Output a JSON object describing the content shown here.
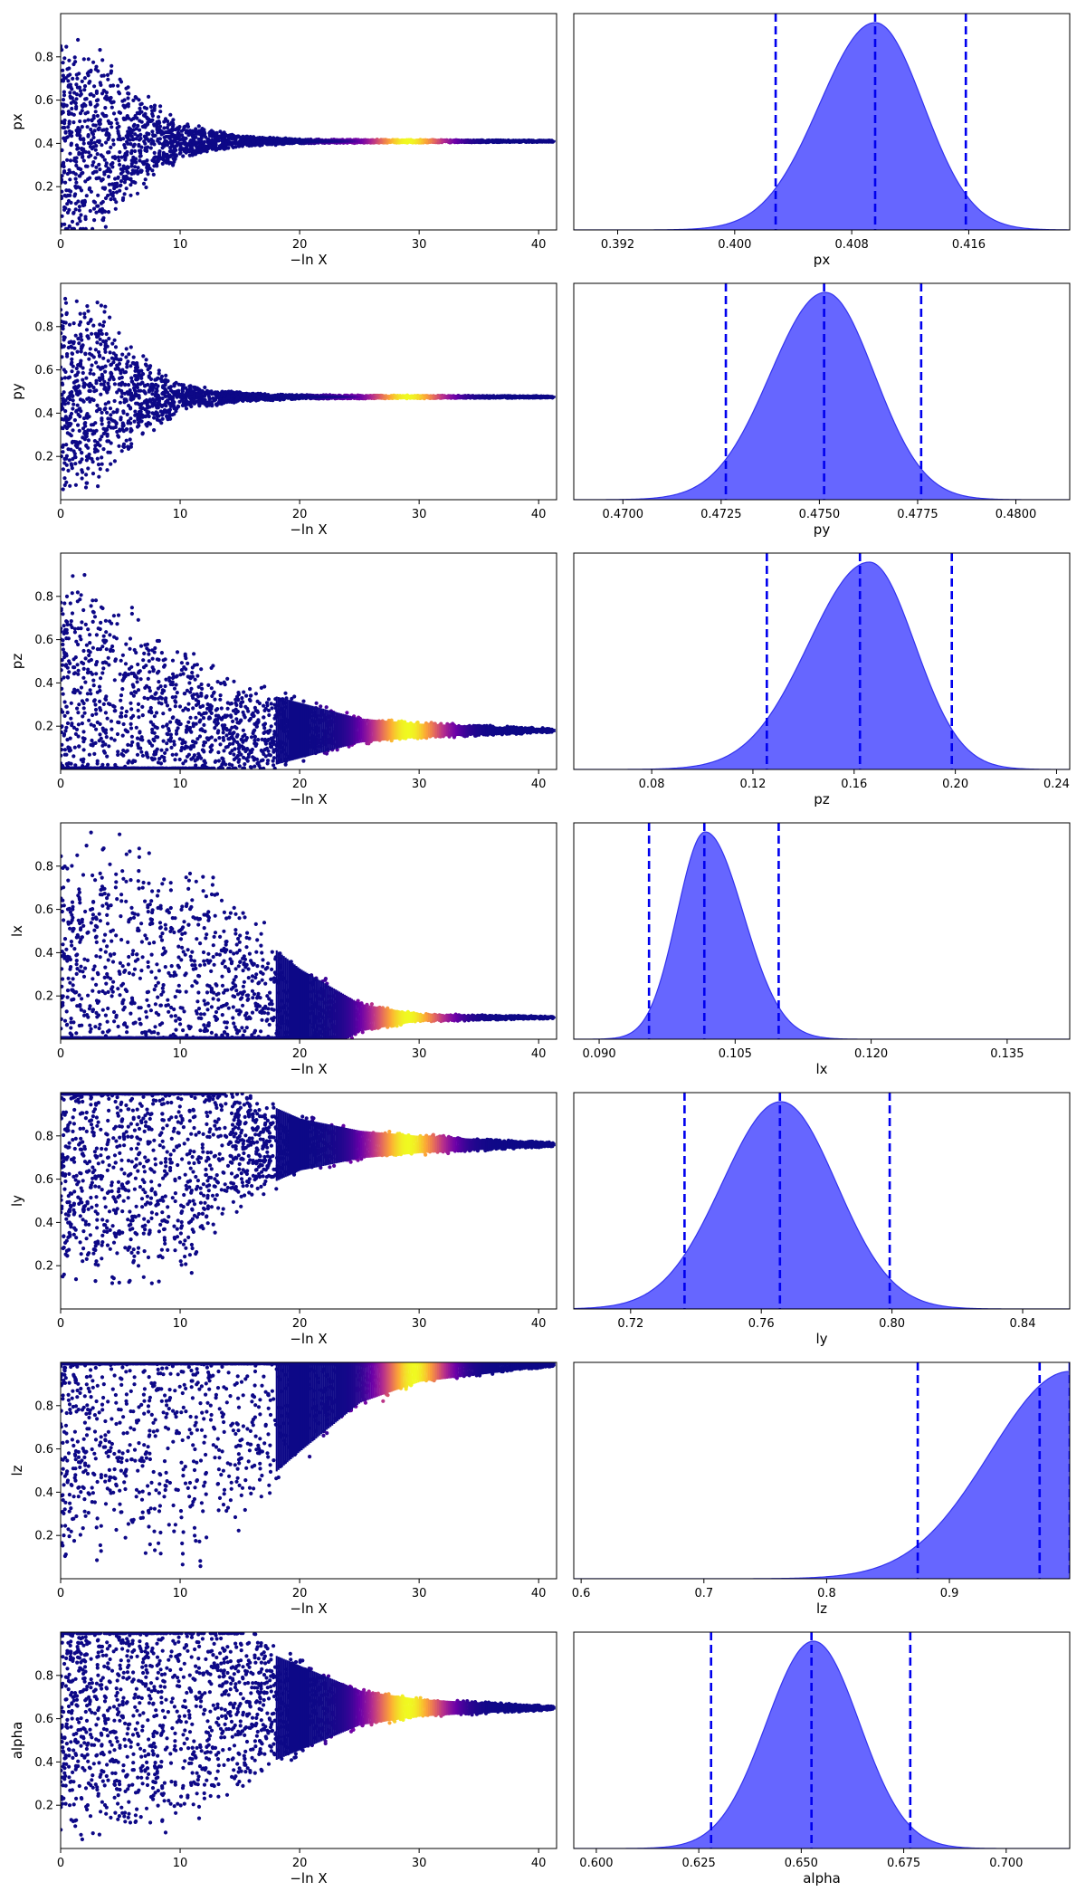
{
  "colors": {
    "posterior_fill": "#6666ff",
    "posterior_edge": "#3333ee",
    "quantile_line": "#0000ee",
    "trace_colormap": [
      "#0d0887",
      "#6a00a8",
      "#b12a90",
      "#e16462",
      "#fca636",
      "#f0f921"
    ]
  },
  "chart_data": [
    {
      "type": "scatter",
      "name": "trace-px",
      "xlabel": "−ln X",
      "ylabel": "px",
      "xlim": [
        0,
        41.5
      ],
      "ylim": [
        0,
        1
      ],
      "xticks": [
        0,
        10,
        20,
        30,
        40
      ],
      "yticks": [
        0.2,
        0.4,
        0.6,
        0.8
      ],
      "converged_value": 0.41,
      "spread_profile": [
        [
          0,
          0.5
        ],
        [
          3,
          0.5
        ],
        [
          6,
          0.28
        ],
        [
          10,
          0.09
        ],
        [
          15,
          0.03
        ],
        [
          20,
          0.01
        ],
        [
          41,
          0.004
        ]
      ],
      "bright_region": [
        25,
        33
      ]
    },
    {
      "type": "area",
      "name": "posterior-px",
      "xlabel": "px",
      "xlim": [
        0.389,
        0.4229
      ],
      "xticks": [
        "0.392",
        "0.400",
        "0.408",
        "0.416"
      ],
      "peak": 0.4096,
      "sigma_left": 0.0038,
      "sigma_right": 0.0033,
      "quantiles": [
        0.4028,
        0.4096,
        0.4158
      ]
    },
    {
      "type": "scatter",
      "name": "trace-py",
      "xlabel": "−ln X",
      "ylabel": "py",
      "xlim": [
        0,
        41.5
      ],
      "ylim": [
        0,
        1
      ],
      "xticks": [
        0,
        10,
        20,
        30,
        40
      ],
      "yticks": [
        0.2,
        0.4,
        0.6,
        0.8
      ],
      "converged_value": 0.475,
      "spread_profile": [
        [
          0,
          0.5
        ],
        [
          3,
          0.5
        ],
        [
          6,
          0.25
        ],
        [
          10,
          0.07
        ],
        [
          15,
          0.025
        ],
        [
          20,
          0.01
        ],
        [
          41,
          0.004
        ]
      ],
      "bright_region": [
        25,
        33
      ]
    },
    {
      "type": "area",
      "name": "posterior-py",
      "xlabel": "py",
      "xlim": [
        0.46875,
        0.48137
      ],
      "xticks": [
        "0.4700",
        "0.4725",
        "0.4750",
        "0.4775",
        "0.4800"
      ],
      "peak": 0.47515,
      "sigma_left": 0.0014,
      "sigma_right": 0.00125,
      "quantiles": [
        0.47262,
        0.47512,
        0.47759
      ]
    },
    {
      "type": "scatter",
      "name": "trace-pz",
      "xlabel": "−ln X",
      "ylabel": "pz",
      "xlim": [
        0,
        41.5
      ],
      "ylim": [
        0,
        1
      ],
      "xticks": [
        0,
        10,
        20,
        30,
        40
      ],
      "yticks": [
        0.2,
        0.4,
        0.6,
        0.8
      ],
      "converged_value": 0.18,
      "spread_profile": [
        [
          0,
          0.82
        ],
        [
          5,
          0.65
        ],
        [
          10,
          0.42
        ],
        [
          15,
          0.25
        ],
        [
          20,
          0.16
        ],
        [
          25,
          0.07
        ],
        [
          30,
          0.04
        ],
        [
          41,
          0.01
        ]
      ],
      "bright_region": [
        25,
        33
      ]
    },
    {
      "type": "area",
      "name": "posterior-pz",
      "xlabel": "pz",
      "xlim": [
        0.0492,
        0.2452
      ],
      "xticks": [
        "0.08",
        "0.12",
        "0.16",
        "0.20",
        "0.24"
      ],
      "peak": 0.166,
      "sigma_left": 0.024,
      "sigma_right": 0.018,
      "quantiles": [
        0.1255,
        0.1623,
        0.1986
      ]
    },
    {
      "type": "scatter",
      "name": "trace-lx",
      "xlabel": "−ln X",
      "ylabel": "lx",
      "xlim": [
        0,
        41.5
      ],
      "ylim": [
        0,
        1
      ],
      "xticks": [
        0,
        10,
        20,
        30,
        40
      ],
      "yticks": [
        0.2,
        0.4,
        0.6,
        0.8
      ],
      "converged_value": 0.1,
      "spread_profile": [
        [
          0,
          0.9
        ],
        [
          10,
          0.85
        ],
        [
          15,
          0.55
        ],
        [
          20,
          0.28
        ],
        [
          25,
          0.08
        ],
        [
          30,
          0.02
        ],
        [
          41,
          0.005
        ]
      ],
      "bright_region": [
        25,
        33
      ]
    },
    {
      "type": "area",
      "name": "posterior-lx",
      "xlabel": "lx",
      "xlim": [
        0.0872,
        0.1419
      ],
      "xticks": [
        "0.090",
        "0.105",
        "0.120",
        "0.135"
      ],
      "peak": 0.1017,
      "sigma_left": 0.0031,
      "sigma_right": 0.0042,
      "quantiles": [
        0.0955,
        0.1016,
        0.1098
      ]
    },
    {
      "type": "scatter",
      "name": "trace-ly",
      "xlabel": "−ln X",
      "ylabel": "ly",
      "xlim": [
        0,
        41.5
      ],
      "ylim": [
        0,
        1
      ],
      "xticks": [
        0,
        10,
        20,
        30,
        40
      ],
      "yticks": [
        0.2,
        0.4,
        0.6,
        0.8
      ],
      "converged_value": 0.76,
      "spread_profile": [
        [
          0,
          0.75
        ],
        [
          11,
          0.65
        ],
        [
          15,
          0.3
        ],
        [
          20,
          0.15
        ],
        [
          25,
          0.08
        ],
        [
          30,
          0.05
        ],
        [
          41,
          0.01
        ]
      ],
      "bright_region": [
        25,
        33
      ]
    },
    {
      "type": "area",
      "name": "posterior-ly",
      "xlabel": "ly",
      "xlim": [
        0.7026,
        0.8544
      ],
      "xticks": [
        "0.72",
        "0.76",
        "0.80",
        "0.84"
      ],
      "peak": 0.766,
      "sigma_left": 0.018,
      "sigma_right": 0.017,
      "quantiles": [
        0.7365,
        0.7657,
        0.7993
      ]
    },
    {
      "type": "scatter",
      "name": "trace-lz",
      "xlabel": "−ln X",
      "ylabel": "lz",
      "xlim": [
        0,
        41.5
      ],
      "ylim": [
        0,
        1
      ],
      "xticks": [
        0,
        10,
        20,
        30,
        40
      ],
      "yticks": [
        0.2,
        0.4,
        0.6,
        0.8
      ],
      "converged_value": 0.99,
      "spread_profile": [
        [
          0,
          0.99
        ],
        [
          12,
          0.97
        ],
        [
          20,
          0.5
        ],
        [
          25,
          0.22
        ],
        [
          30,
          0.1
        ],
        [
          41,
          0.01
        ]
      ],
      "bright_region": [
        26,
        33
      ]
    },
    {
      "type": "area",
      "name": "posterior-lz",
      "xlabel": "lz",
      "xlim": [
        0.594,
        0.998
      ],
      "xticks": [
        "0.6",
        "0.7",
        "0.8",
        "0.9"
      ],
      "peak": 0.998,
      "sigma_left": 0.065,
      "sigma_right": 0.01,
      "quantiles": [
        0.8742,
        0.9735,
        0.998
      ]
    },
    {
      "type": "scatter",
      "name": "trace-alpha",
      "xlabel": "−ln X",
      "ylabel": "alpha",
      "xlim": [
        0,
        41.5
      ],
      "ylim": [
        0,
        1
      ],
      "xticks": [
        0,
        10,
        20,
        30,
        40
      ],
      "yticks": [
        0.2,
        0.4,
        0.6,
        0.8
      ],
      "converged_value": 0.65,
      "spread_profile": [
        [
          0,
          0.65
        ],
        [
          12,
          0.6
        ],
        [
          18,
          0.3
        ],
        [
          25,
          0.1
        ],
        [
          30,
          0.05
        ],
        [
          41,
          0.01
        ]
      ],
      "bright_region": [
        25,
        33
      ]
    },
    {
      "type": "area",
      "name": "posterior-alpha",
      "xlabel": "alpha",
      "xlim": [
        0.5945,
        0.7155
      ],
      "xticks": [
        "0.600",
        "0.625",
        "0.650",
        "0.675",
        "0.700"
      ],
      "peak": 0.653,
      "sigma_left": 0.0115,
      "sigma_right": 0.0112,
      "quantiles": [
        0.628,
        0.6525,
        0.6766
      ]
    }
  ]
}
